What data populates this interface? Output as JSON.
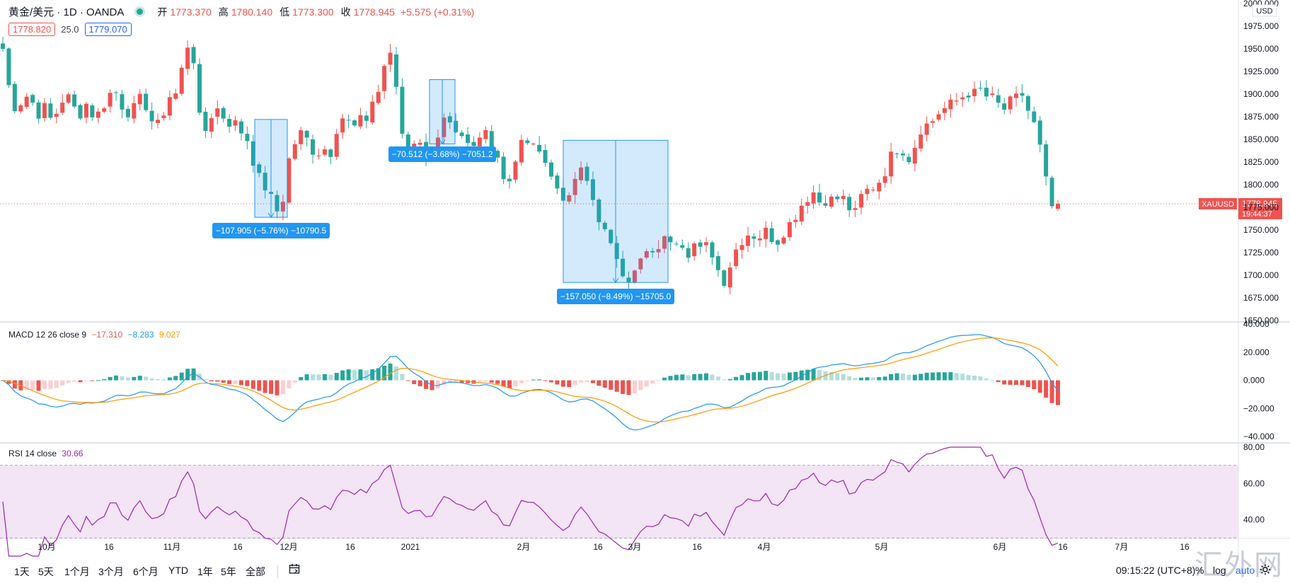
{
  "header": {
    "symbol": "黄金/美元 · 1D · OANDA",
    "open_label": "开",
    "open": "1773.370",
    "high_label": "高",
    "high": "1780.140",
    "low_label": "低",
    "low": "1773.300",
    "close_label": "收",
    "close": "1778.945",
    "change": "+5.575 (+0.31%)",
    "bid": "1778.820",
    "spread": "25.0",
    "ask": "1779.070"
  },
  "indicators": {
    "macd_name": "MACD 12 26 close 9",
    "macd_v1": "−17.310",
    "macd_v2": "−8.283",
    "macd_v3": "9.027",
    "rsi_name": "RSI 14 close",
    "rsi_value": "30.66"
  },
  "colors": {
    "up": "#ef5350",
    "down": "#26a69a",
    "macd_line": "#2196f3",
    "signal_line": "#ff9800",
    "rsi_line": "#9c27b0",
    "rsi_band": "#f3e5f5",
    "measure": "#2196f3"
  },
  "chart_data": [
    {
      "type": "candlestick",
      "ylim": [
        1650,
        2000
      ],
      "price_axis_labels": [
        "2000.000",
        "1975.000",
        "1950.000",
        "1925.000",
        "1900.000",
        "1875.000",
        "1850.000",
        "1825.000",
        "1800.000",
        "1775.000",
        "1750.000",
        "1725.000",
        "1700.000",
        "1675.000",
        "1650.000"
      ],
      "currency": "USD",
      "x_labels": [
        "10月",
        "16",
        "11月",
        "16",
        "12月",
        "16",
        "2021",
        "2月",
        "16",
        "3月",
        "16",
        "4月",
        "5月",
        "6月",
        "16",
        "7月",
        "16"
      ],
      "current_price": {
        "symbol": "XAUUSD",
        "price": "1778.945",
        "countdown": "19:44:37",
        "value": 1778.945
      },
      "anchor_prices": [
        1950,
        1902,
        1880,
        1900,
        1895,
        1878,
        1885,
        1870,
        1884,
        1902,
        1886,
        1878,
        1890,
        1875,
        1880,
        1898,
        1905,
        1888,
        1880,
        1885,
        1899,
        1875,
        1862,
        1880,
        1900,
        1900,
        1945,
        1966,
        1875,
        1860,
        1880,
        1885,
        1868,
        1870,
        1860,
        1850,
        1822,
        1800,
        1795,
        1768,
        1780,
        1830,
        1850,
        1860,
        1840,
        1835,
        1840,
        1836,
        1870,
        1877,
        1860,
        1870,
        1872,
        1895,
        1905,
        1950,
        1930,
        1860,
        1842,
        1850,
        1840,
        1828,
        1840,
        1870,
        1862,
        1850,
        1848,
        1838,
        1845,
        1870,
        1840,
        1830,
        1800,
        1810,
        1845,
        1850,
        1838,
        1845,
        1815,
        1800,
        1790,
        1780,
        1810,
        1815,
        1795,
        1770,
        1750,
        1730,
        1720,
        1700,
        1695,
        1712,
        1725,
        1720,
        1735,
        1740,
        1742,
        1740,
        1725,
        1735,
        1725,
        1735,
        1715,
        1690,
        1710,
        1730,
        1742,
        1748,
        1740,
        1750,
        1742,
        1738,
        1752,
        1760,
        1775,
        1785,
        1792,
        1780,
        1785,
        1782,
        1788,
        1775,
        1768,
        1790,
        1795,
        1800,
        1810,
        1830,
        1840,
        1838,
        1825,
        1860,
        1865,
        1870,
        1880,
        1885,
        1890,
        1895,
        1902,
        1900,
        1905,
        1895,
        1895,
        1880,
        1890,
        1895,
        1900,
        1875,
        1860,
        1815,
        1775,
        1779
      ],
      "measurements": [
        {
          "label": "−107.905 (−5.76%) −10790.5",
          "from": 1872,
          "to": 1764
        },
        {
          "label": "−70.512 (−3.68%) −7051.2",
          "from": 1916,
          "to": 1845
        },
        {
          "label": "−157.050 (−8.49%) −15705.0",
          "from": 1849,
          "to": 1692
        }
      ]
    },
    {
      "type": "bar",
      "name": "MACD",
      "ylim": [
        -40,
        40
      ],
      "axis_labels": [
        "40.000",
        "20.000",
        "0.000",
        "−20.000",
        "−40.000"
      ]
    },
    {
      "type": "line",
      "name": "RSI",
      "ylim": [
        20,
        80
      ],
      "axis_labels": [
        "80.00",
        "60.00",
        "40.00"
      ],
      "bands": [
        30,
        70
      ]
    }
  ],
  "bottom_bar": {
    "timeframes": [
      "1天",
      "5天",
      "1个月",
      "3个月",
      "6个月",
      "YTD",
      "1年",
      "5年",
      "全部"
    ],
    "clock": "09:15:22 (UTC+8)",
    "pct": "%",
    "log": "log",
    "auto": "auto",
    "watermark": "汇外网"
  }
}
